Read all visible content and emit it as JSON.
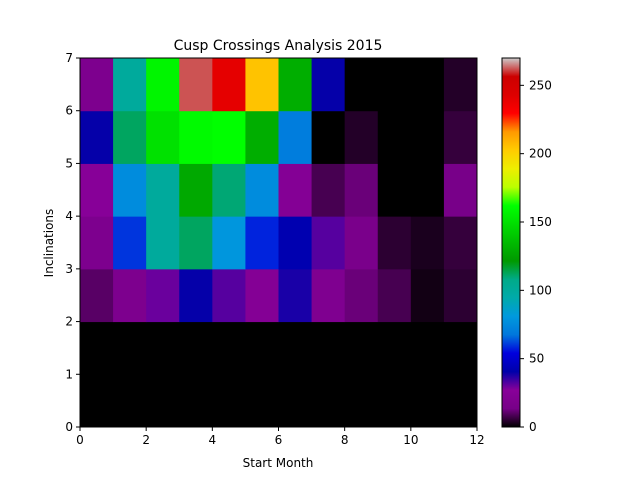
{
  "chart_data": {
    "type": "heatmap",
    "title": "Cusp Crossings Analysis 2015",
    "xlabel": "Start Month",
    "ylabel": "Inclinations",
    "xlim": [
      0,
      12
    ],
    "ylim": [
      0,
      7
    ],
    "xticks": [
      "0",
      "2",
      "4",
      "6",
      "8",
      "10",
      "12"
    ],
    "yticks": [
      "0",
      "1",
      "2",
      "3",
      "4",
      "5",
      "6",
      "7"
    ],
    "colormap": "nipy_spectral",
    "colorbar": {
      "min": 0,
      "max": 270,
      "ticks": [
        "0",
        "50",
        "100",
        "150",
        "200",
        "250"
      ]
    },
    "x_bins": [
      0,
      1,
      2,
      3,
      4,
      5,
      6,
      7,
      8,
      9,
      10,
      11,
      12
    ],
    "y_bins": [
      0,
      1,
      2,
      3,
      4,
      5,
      6,
      7
    ],
    "values": [
      [
        0,
        0,
        0,
        0,
        0,
        0,
        0,
        0,
        0,
        0,
        0,
        0
      ],
      [
        0,
        0,
        0,
        0,
        0,
        0,
        0,
        0,
        0,
        0,
        0,
        0
      ],
      [
        10,
        18,
        30,
        40,
        32,
        24,
        38,
        20,
        12,
        8,
        2,
        5
      ],
      [
        18,
        60,
        100,
        112,
        80,
        58,
        42,
        32,
        16,
        5,
        3,
        6
      ],
      [
        26,
        76,
        100,
        128,
        110,
        76,
        24,
        8,
        12,
        0,
        0,
        14
      ],
      [
        40,
        112,
        150,
        160,
        162,
        130,
        70,
        0,
        4,
        0,
        0,
        6
      ],
      [
        18,
        100,
        158,
        262,
        240,
        205,
        130,
        40,
        0,
        0,
        0,
        4
      ]
    ]
  }
}
